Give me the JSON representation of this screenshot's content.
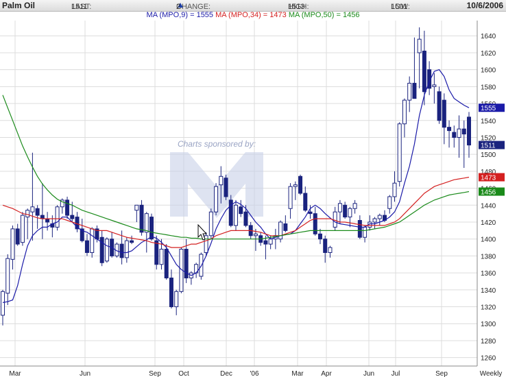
{
  "header": {
    "symbol": "Palm Oil",
    "last_label": "LAST:",
    "last_value": "1511",
    "change_label": "CHANGE:",
    "change_value": "2",
    "high_label": "HIGH:",
    "high_value": "1513",
    "low_label": "LOW:",
    "low_value": "1501",
    "date": "10/6/2006"
  },
  "ma_legend": [
    {
      "label": "MA (MPO,9) = 1555",
      "color": "#1a1aa8"
    },
    {
      "label": "MA (MPO,34) = 1473",
      "color": "#d42020"
    },
    {
      "label": "MA (MPO,50) = 1456",
      "color": "#1a8a1a"
    }
  ],
  "watermark_text": "Charts sponsored by:",
  "chart_data": {
    "type": "candlestick",
    "title": "Palm Oil",
    "xlabel": "",
    "ylabel": "",
    "ylim": [
      1250,
      1660
    ],
    "x_ticks": [
      "Mar",
      "Jun",
      "Sep",
      "Oct",
      "Dec",
      "'06",
      "Mar",
      "Apr",
      "Jun",
      "Jul",
      "Sep",
      "Weekly"
    ],
    "y_ticks": [
      1260,
      1280,
      1300,
      1320,
      1340,
      1360,
      1380,
      1400,
      1420,
      1440,
      1460,
      1480,
      1500,
      1520,
      1540,
      1560,
      1580,
      1600,
      1620,
      1640
    ],
    "grid": true,
    "up_color": "#ffffff",
    "down_color": "#1a237e",
    "candles": [
      {
        "o": 1310,
        "h": 1340,
        "l": 1298,
        "c": 1338
      },
      {
        "o": 1336,
        "h": 1382,
        "l": 1322,
        "c": 1377
      },
      {
        "o": 1376,
        "h": 1416,
        "l": 1364,
        "c": 1412
      },
      {
        "o": 1412,
        "h": 1418,
        "l": 1392,
        "c": 1394
      },
      {
        "o": 1396,
        "h": 1432,
        "l": 1392,
        "c": 1428
      },
      {
        "o": 1426,
        "h": 1436,
        "l": 1400,
        "c": 1434
      },
      {
        "o": 1432,
        "h": 1502,
        "l": 1398,
        "c": 1438
      },
      {
        "o": 1436,
        "h": 1440,
        "l": 1412,
        "c": 1428
      },
      {
        "o": 1428,
        "h": 1466,
        "l": 1400,
        "c": 1424
      },
      {
        "o": 1424,
        "h": 1432,
        "l": 1410,
        "c": 1420
      },
      {
        "o": 1418,
        "h": 1428,
        "l": 1402,
        "c": 1414
      },
      {
        "o": 1414,
        "h": 1440,
        "l": 1410,
        "c": 1438
      },
      {
        "o": 1438,
        "h": 1448,
        "l": 1430,
        "c": 1446
      },
      {
        "o": 1446,
        "h": 1450,
        "l": 1424,
        "c": 1428
      },
      {
        "o": 1428,
        "h": 1444,
        "l": 1420,
        "c": 1424
      },
      {
        "o": 1426,
        "h": 1432,
        "l": 1408,
        "c": 1412
      },
      {
        "o": 1412,
        "h": 1424,
        "l": 1396,
        "c": 1398
      },
      {
        "o": 1398,
        "h": 1406,
        "l": 1380,
        "c": 1384
      },
      {
        "o": 1384,
        "h": 1414,
        "l": 1378,
        "c": 1412
      },
      {
        "o": 1412,
        "h": 1416,
        "l": 1396,
        "c": 1400
      },
      {
        "o": 1402,
        "h": 1410,
        "l": 1368,
        "c": 1372
      },
      {
        "o": 1374,
        "h": 1402,
        "l": 1372,
        "c": 1400
      },
      {
        "o": 1400,
        "h": 1408,
        "l": 1378,
        "c": 1380
      },
      {
        "o": 1380,
        "h": 1396,
        "l": 1378,
        "c": 1394
      },
      {
        "o": 1394,
        "h": 1410,
        "l": 1370,
        "c": 1378
      },
      {
        "o": 1378,
        "h": 1402,
        "l": 1372,
        "c": 1398
      },
      {
        "o": 1398,
        "h": 1404,
        "l": 1394,
        "c": 1396
      },
      {
        "o": 1434,
        "h": 1440,
        "l": 1420,
        "c": 1440
      },
      {
        "o": 1440,
        "h": 1446,
        "l": 1404,
        "c": 1408
      },
      {
        "o": 1408,
        "h": 1432,
        "l": 1384,
        "c": 1430
      },
      {
        "o": 1426,
        "h": 1430,
        "l": 1398,
        "c": 1400
      },
      {
        "o": 1398,
        "h": 1404,
        "l": 1364,
        "c": 1370
      },
      {
        "o": 1370,
        "h": 1400,
        "l": 1364,
        "c": 1388
      },
      {
        "o": 1388,
        "h": 1394,
        "l": 1352,
        "c": 1354
      },
      {
        "o": 1354,
        "h": 1364,
        "l": 1318,
        "c": 1320
      },
      {
        "o": 1320,
        "h": 1340,
        "l": 1310,
        "c": 1338
      },
      {
        "o": 1338,
        "h": 1390,
        "l": 1336,
        "c": 1388
      },
      {
        "o": 1388,
        "h": 1400,
        "l": 1348,
        "c": 1354
      },
      {
        "o": 1354,
        "h": 1362,
        "l": 1346,
        "c": 1360
      },
      {
        "o": 1360,
        "h": 1372,
        "l": 1354,
        "c": 1370
      },
      {
        "o": 1356,
        "h": 1384,
        "l": 1352,
        "c": 1382
      },
      {
        "o": 1384,
        "h": 1408,
        "l": 1380,
        "c": 1404
      },
      {
        "o": 1404,
        "h": 1436,
        "l": 1400,
        "c": 1432
      },
      {
        "o": 1432,
        "h": 1466,
        "l": 1428,
        "c": 1462
      },
      {
        "o": 1464,
        "h": 1486,
        "l": 1442,
        "c": 1474
      },
      {
        "o": 1472,
        "h": 1476,
        "l": 1446,
        "c": 1450
      },
      {
        "o": 1446,
        "h": 1452,
        "l": 1414,
        "c": 1416
      },
      {
        "o": 1416,
        "h": 1446,
        "l": 1410,
        "c": 1440
      },
      {
        "o": 1438,
        "h": 1446,
        "l": 1426,
        "c": 1430
      },
      {
        "o": 1432,
        "h": 1440,
        "l": 1414,
        "c": 1416
      },
      {
        "o": 1416,
        "h": 1420,
        "l": 1400,
        "c": 1404
      },
      {
        "o": 1404,
        "h": 1412,
        "l": 1386,
        "c": 1406
      },
      {
        "o": 1404,
        "h": 1408,
        "l": 1392,
        "c": 1396
      },
      {
        "o": 1398,
        "h": 1404,
        "l": 1376,
        "c": 1394
      },
      {
        "o": 1394,
        "h": 1404,
        "l": 1388,
        "c": 1400
      },
      {
        "o": 1400,
        "h": 1412,
        "l": 1388,
        "c": 1404
      },
      {
        "o": 1400,
        "h": 1422,
        "l": 1396,
        "c": 1420
      },
      {
        "o": 1418,
        "h": 1428,
        "l": 1408,
        "c": 1410
      },
      {
        "o": 1436,
        "h": 1466,
        "l": 1424,
        "c": 1462
      },
      {
        "o": 1462,
        "h": 1468,
        "l": 1446,
        "c": 1464
      },
      {
        "o": 1474,
        "h": 1476,
        "l": 1452,
        "c": 1454
      },
      {
        "o": 1454,
        "h": 1462,
        "l": 1432,
        "c": 1434
      },
      {
        "o": 1432,
        "h": 1440,
        "l": 1424,
        "c": 1430
      },
      {
        "o": 1430,
        "h": 1438,
        "l": 1404,
        "c": 1406
      },
      {
        "o": 1406,
        "h": 1412,
        "l": 1394,
        "c": 1400
      },
      {
        "o": 1400,
        "h": 1404,
        "l": 1372,
        "c": 1384
      },
      {
        "o": 1384,
        "h": 1392,
        "l": 1378,
        "c": 1390
      },
      {
        "o": 1414,
        "h": 1438,
        "l": 1410,
        "c": 1432
      },
      {
        "o": 1432,
        "h": 1446,
        "l": 1418,
        "c": 1442
      },
      {
        "o": 1440,
        "h": 1444,
        "l": 1424,
        "c": 1426
      },
      {
        "o": 1426,
        "h": 1438,
        "l": 1414,
        "c": 1436
      },
      {
        "o": 1436,
        "h": 1446,
        "l": 1430,
        "c": 1442
      },
      {
        "o": 1422,
        "h": 1428,
        "l": 1400,
        "c": 1402
      },
      {
        "o": 1402,
        "h": 1416,
        "l": 1396,
        "c": 1414
      },
      {
        "o": 1414,
        "h": 1428,
        "l": 1410,
        "c": 1420
      },
      {
        "o": 1420,
        "h": 1426,
        "l": 1412,
        "c": 1424
      },
      {
        "o": 1424,
        "h": 1430,
        "l": 1416,
        "c": 1428
      },
      {
        "o": 1428,
        "h": 1434,
        "l": 1420,
        "c": 1422
      },
      {
        "o": 1436,
        "h": 1452,
        "l": 1430,
        "c": 1450
      },
      {
        "o": 1450,
        "h": 1480,
        "l": 1444,
        "c": 1466
      },
      {
        "o": 1468,
        "h": 1538,
        "l": 1462,
        "c": 1536
      },
      {
        "o": 1536,
        "h": 1566,
        "l": 1520,
        "c": 1564
      },
      {
        "o": 1564,
        "h": 1592,
        "l": 1550,
        "c": 1584
      },
      {
        "o": 1584,
        "h": 1638,
        "l": 1566,
        "c": 1566
      },
      {
        "o": 1620,
        "h": 1650,
        "l": 1578,
        "c": 1636
      },
      {
        "o": 1622,
        "h": 1646,
        "l": 1558,
        "c": 1574
      },
      {
        "o": 1600,
        "h": 1610,
        "l": 1570,
        "c": 1578
      },
      {
        "o": 1580,
        "h": 1596,
        "l": 1560,
        "c": 1582
      },
      {
        "o": 1574,
        "h": 1580,
        "l": 1536,
        "c": 1540
      },
      {
        "o": 1564,
        "h": 1572,
        "l": 1512,
        "c": 1532
      },
      {
        "o": 1532,
        "h": 1540,
        "l": 1508,
        "c": 1528
      },
      {
        "o": 1526,
        "h": 1534,
        "l": 1508,
        "c": 1520
      },
      {
        "o": 1520,
        "h": 1546,
        "l": 1496,
        "c": 1530
      },
      {
        "o": 1530,
        "h": 1540,
        "l": 1484,
        "c": 1524
      },
      {
        "o": 1544,
        "h": 1550,
        "l": 1496,
        "c": 1511
      }
    ],
    "series": [
      {
        "name": "MA (MPO,9)",
        "color": "#1a1aa8",
        "last_value": 1555,
        "values": [
          1325,
          1326,
          1328,
          1345,
          1370,
          1392,
          1404,
          1410,
          1414,
          1414,
          1418,
          1420,
          1426,
          1426,
          1420,
          1414,
          1410,
          1408,
          1404,
          1400,
          1396,
          1392,
          1390,
          1386,
          1384,
          1384,
          1386,
          1391,
          1396,
          1399,
          1403,
          1401,
          1396,
          1390,
          1380,
          1370,
          1364,
          1360,
          1357,
          1360,
          1368,
          1380,
          1395,
          1412,
          1424,
          1434,
          1440,
          1444,
          1441,
          1436,
          1428,
          1420,
          1414,
          1406,
          1400,
          1402,
          1404,
          1405,
          1406,
          1410,
          1418,
          1426,
          1436,
          1440,
          1436,
          1430,
          1425,
          1420,
          1418,
          1417,
          1416,
          1415,
          1414,
          1414,
          1418,
          1418,
          1420,
          1422,
          1426,
          1432,
          1444,
          1466,
          1486,
          1512,
          1546,
          1570,
          1586,
          1598,
          1600,
          1592,
          1576,
          1566,
          1562,
          1558,
          1555
        ]
      },
      {
        "name": "MA (MPO,34)",
        "color": "#d42020",
        "last_value": 1473,
        "values": [
          1440,
          1438,
          1436,
          1433,
          1430,
          1429,
          1427,
          1425,
          1424,
          1424,
          1424,
          1424,
          1424,
          1422,
          1420,
          1418,
          1416,
          1414,
          1412,
          1410,
          1410,
          1410,
          1408,
          1406,
          1404,
          1402,
          1401,
          1400,
          1399,
          1398,
          1396,
          1395,
          1394,
          1392,
          1390,
          1390,
          1390,
          1392,
          1394,
          1394,
          1396,
          1398,
          1400,
          1404,
          1406,
          1408,
          1410,
          1410,
          1410,
          1410,
          1410,
          1409,
          1408,
          1406,
          1404,
          1404,
          1404,
          1406,
          1408,
          1410,
          1414,
          1418,
          1422,
          1424,
          1424,
          1424,
          1424,
          1422,
          1420,
          1420,
          1419,
          1418,
          1417,
          1416,
          1416,
          1416,
          1416,
          1416,
          1418,
          1420,
          1424,
          1430,
          1436,
          1442,
          1448,
          1454,
          1458,
          1462,
          1464,
          1466,
          1468,
          1470,
          1471,
          1472,
          1473
        ]
      },
      {
        "name": "MA (MPO,50)",
        "color": "#1a8a1a",
        "last_value": 1456,
        "values": [
          1570,
          1555,
          1540,
          1525,
          1510,
          1497,
          1485,
          1474,
          1465,
          1458,
          1452,
          1447,
          1444,
          1442,
          1440,
          1437,
          1434,
          1432,
          1430,
          1428,
          1426,
          1424,
          1422,
          1420,
          1418,
          1416,
          1414,
          1412,
          1411,
          1410,
          1408,
          1407,
          1406,
          1405,
          1404,
          1403,
          1402,
          1402,
          1401,
          1401,
          1400,
          1400,
          1400,
          1400,
          1400,
          1400,
          1400,
          1400,
          1400,
          1400,
          1400,
          1400,
          1400,
          1401,
          1402,
          1403,
          1404,
          1405,
          1406,
          1407,
          1408,
          1409,
          1410,
          1410,
          1410,
          1410,
          1410,
          1410,
          1410,
          1410,
          1410,
          1410,
          1410,
          1410,
          1411,
          1412,
          1413,
          1414,
          1416,
          1418,
          1420,
          1424,
          1428,
          1432,
          1436,
          1440,
          1443,
          1446,
          1448,
          1450,
          1452,
          1453,
          1454,
          1455,
          1456
        ]
      }
    ]
  }
}
